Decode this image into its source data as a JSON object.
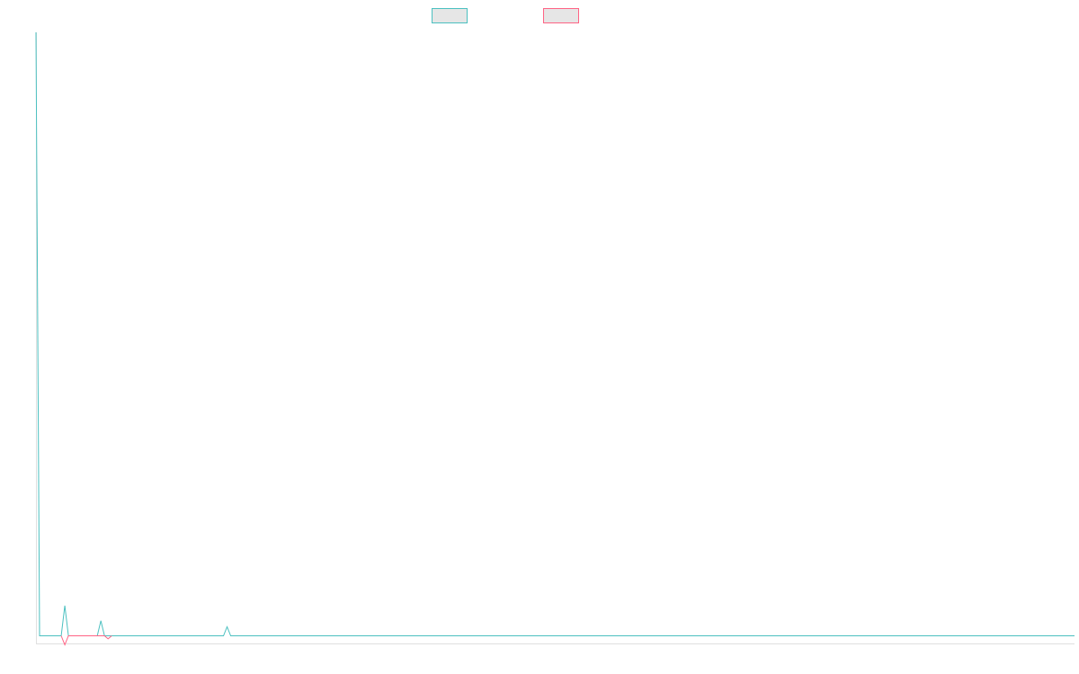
{
  "chart_data": {
    "type": "line",
    "title": "",
    "xlabel": "",
    "ylabel": "",
    "grid": false,
    "legend_position": "top-center",
    "x": [
      0,
      1,
      2,
      3,
      4,
      5,
      6,
      7,
      8,
      9,
      10,
      11,
      12,
      13,
      14,
      15,
      16,
      17,
      18,
      19,
      20,
      21,
      22,
      23,
      24,
      25,
      26,
      27,
      28,
      29,
      30,
      31,
      32,
      33,
      34,
      35,
      36,
      37,
      38,
      39,
      40,
      41,
      42,
      43,
      44,
      45,
      46,
      47,
      48,
      49,
      50,
      51,
      52,
      53,
      54,
      55,
      56,
      57,
      58,
      59,
      60,
      61,
      62,
      63,
      64,
      65,
      66,
      67,
      68,
      69,
      70,
      71,
      72,
      73,
      74,
      75,
      76,
      77,
      78,
      79,
      80,
      81,
      82,
      83,
      84,
      85,
      86,
      87,
      88,
      89,
      90,
      91,
      92,
      93,
      94,
      95,
      96,
      97,
      98,
      99,
      100,
      101,
      102,
      103,
      104,
      105,
      106,
      107,
      108,
      109,
      110,
      111,
      112,
      113,
      114,
      115,
      116,
      117,
      118,
      119,
      120,
      121,
      122,
      123,
      124,
      125,
      126,
      127,
      128,
      129,
      130,
      131,
      132,
      133,
      134,
      135,
      136,
      137,
      138,
      139,
      140,
      141,
      142,
      143,
      144,
      145,
      146,
      147,
      148,
      149,
      150,
      151,
      152,
      153,
      154,
      155,
      156,
      157,
      158,
      159,
      160,
      161,
      162,
      163,
      164,
      165,
      166,
      167,
      168,
      169,
      170,
      171,
      172,
      173,
      174,
      175,
      176,
      177,
      178,
      179,
      180,
      181,
      182,
      183,
      184,
      185,
      186,
      187,
      188,
      189,
      190,
      191,
      192,
      193,
      194,
      195,
      196,
      197,
      198,
      199,
      200,
      201,
      202,
      203,
      204,
      205,
      206,
      207,
      208,
      209,
      210,
      211,
      212,
      213,
      214,
      215,
      216,
      217,
      218,
      219,
      220,
      221,
      222,
      223,
      224,
      225,
      226,
      227,
      228,
      229,
      230,
      231,
      232,
      233,
      234,
      235,
      236,
      237,
      238,
      239,
      240,
      241,
      242,
      243,
      244,
      245,
      246,
      247,
      248,
      249,
      250,
      251,
      252,
      253,
      254,
      255,
      256,
      257,
      258,
      259,
      260,
      261,
      262,
      263,
      264,
      265,
      266,
      267,
      268,
      269,
      270,
      271,
      272,
      273,
      274,
      275,
      276,
      277,
      278,
      279,
      280,
      281,
      282,
      283,
      284,
      285,
      286,
      287,
      288
    ],
    "xlim": [
      0,
      288
    ],
    "ylim": [
      -2,
      100
    ],
    "series": [
      {
        "color": "#4bc0c0",
        "points": [
          [
            0,
            100
          ],
          [
            1,
            0
          ],
          [
            2,
            0
          ],
          [
            3,
            0
          ],
          [
            4,
            0
          ],
          [
            5,
            0
          ],
          [
            6,
            0
          ],
          [
            7,
            0
          ],
          [
            8,
            5
          ],
          [
            9,
            0
          ],
          [
            10,
            0
          ],
          [
            11,
            0
          ],
          [
            12,
            0
          ],
          [
            13,
            0
          ],
          [
            14,
            0
          ],
          [
            15,
            0
          ],
          [
            16,
            0
          ],
          [
            17,
            0
          ],
          [
            18,
            2.5
          ],
          [
            19,
            0
          ],
          [
            20,
            0
          ],
          [
            21,
            0
          ],
          [
            22,
            0
          ],
          [
            23,
            0
          ],
          [
            24,
            0
          ],
          [
            25,
            0
          ],
          [
            26,
            0
          ],
          [
            27,
            0
          ],
          [
            28,
            0
          ],
          [
            29,
            0
          ],
          [
            30,
            0
          ],
          [
            31,
            0
          ],
          [
            32,
            0
          ],
          [
            33,
            0
          ],
          [
            34,
            0
          ],
          [
            35,
            0
          ],
          [
            36,
            0
          ],
          [
            37,
            0
          ],
          [
            38,
            0
          ],
          [
            39,
            0
          ],
          [
            40,
            0
          ],
          [
            41,
            0
          ],
          [
            42,
            0
          ],
          [
            43,
            0
          ],
          [
            44,
            0
          ],
          [
            45,
            0
          ],
          [
            46,
            0
          ],
          [
            47,
            0
          ],
          [
            48,
            0
          ],
          [
            49,
            0
          ],
          [
            50,
            0
          ],
          [
            51,
            0
          ],
          [
            52,
            0
          ],
          [
            53,
            1.5
          ],
          [
            54,
            0
          ],
          [
            288,
            0
          ]
        ]
      },
      {
        "color": "#ff6384",
        "points": [
          [
            7,
            0
          ],
          [
            8,
            -1.5
          ],
          [
            9,
            0
          ],
          [
            19,
            0
          ],
          [
            20,
            -0.5
          ],
          [
            21,
            0
          ]
        ]
      }
    ]
  },
  "legend": {
    "items": [
      {
        "label": "",
        "border_color": "#4bc0c0"
      },
      {
        "label": "",
        "border_color": "#ff6384"
      }
    ]
  }
}
